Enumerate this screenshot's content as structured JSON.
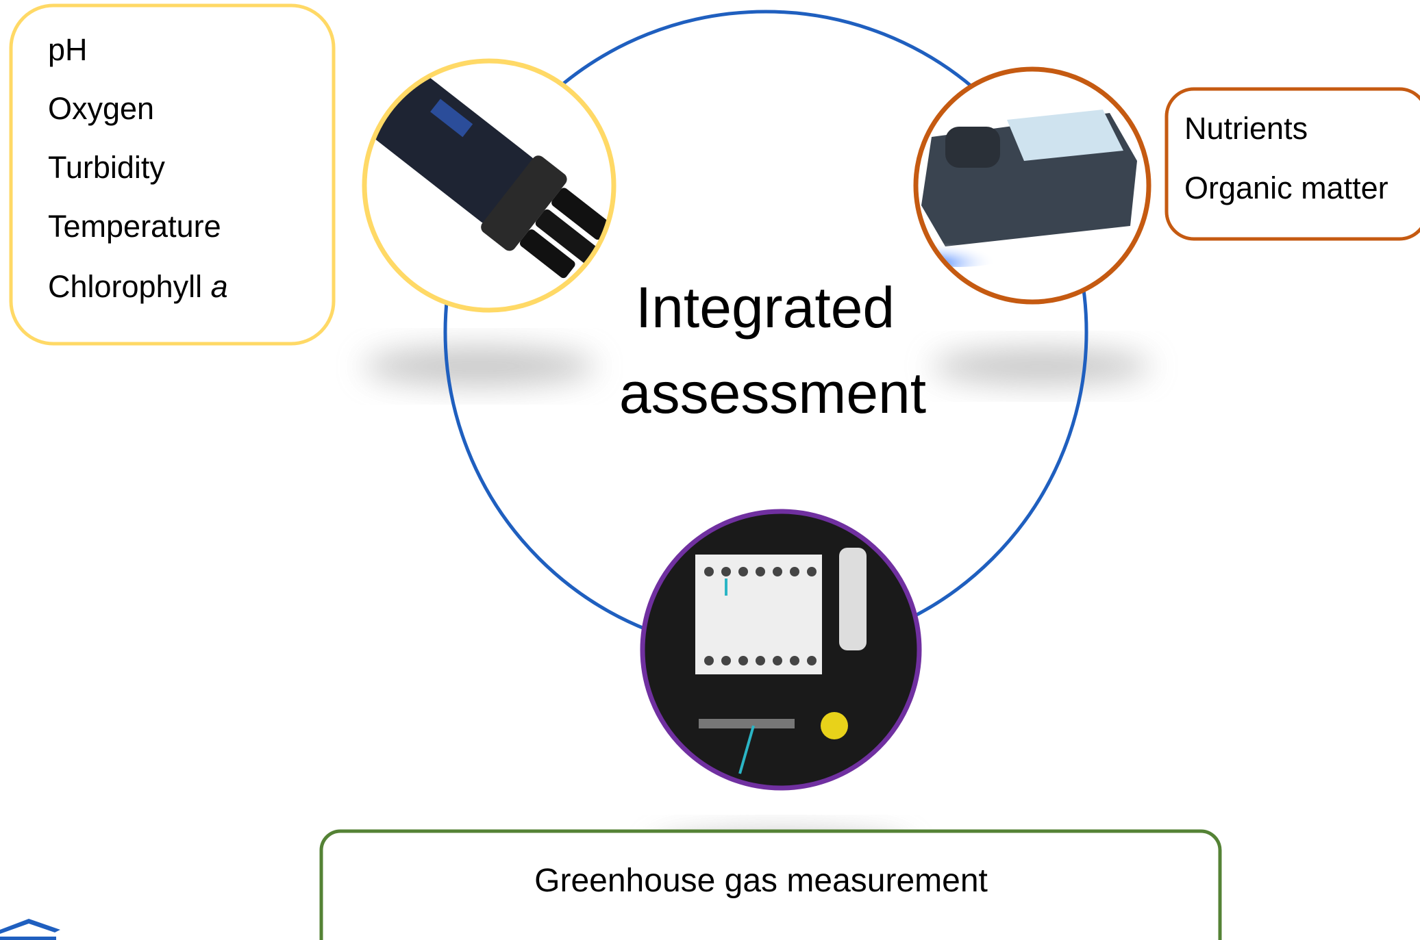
{
  "center": {
    "lines": [
      "Integrated",
      "assessment"
    ]
  },
  "left_box": {
    "items": [
      "pH",
      "Oxygen",
      "Turbidity",
      "Temperature",
      "Chlorophyll"
    ],
    "italic_suffix": "a"
  },
  "right_box": {
    "items": [
      "Nutrients",
      "Organic matter"
    ]
  },
  "bottom_box": {
    "label": "Greenhouse gas measurement"
  }
}
